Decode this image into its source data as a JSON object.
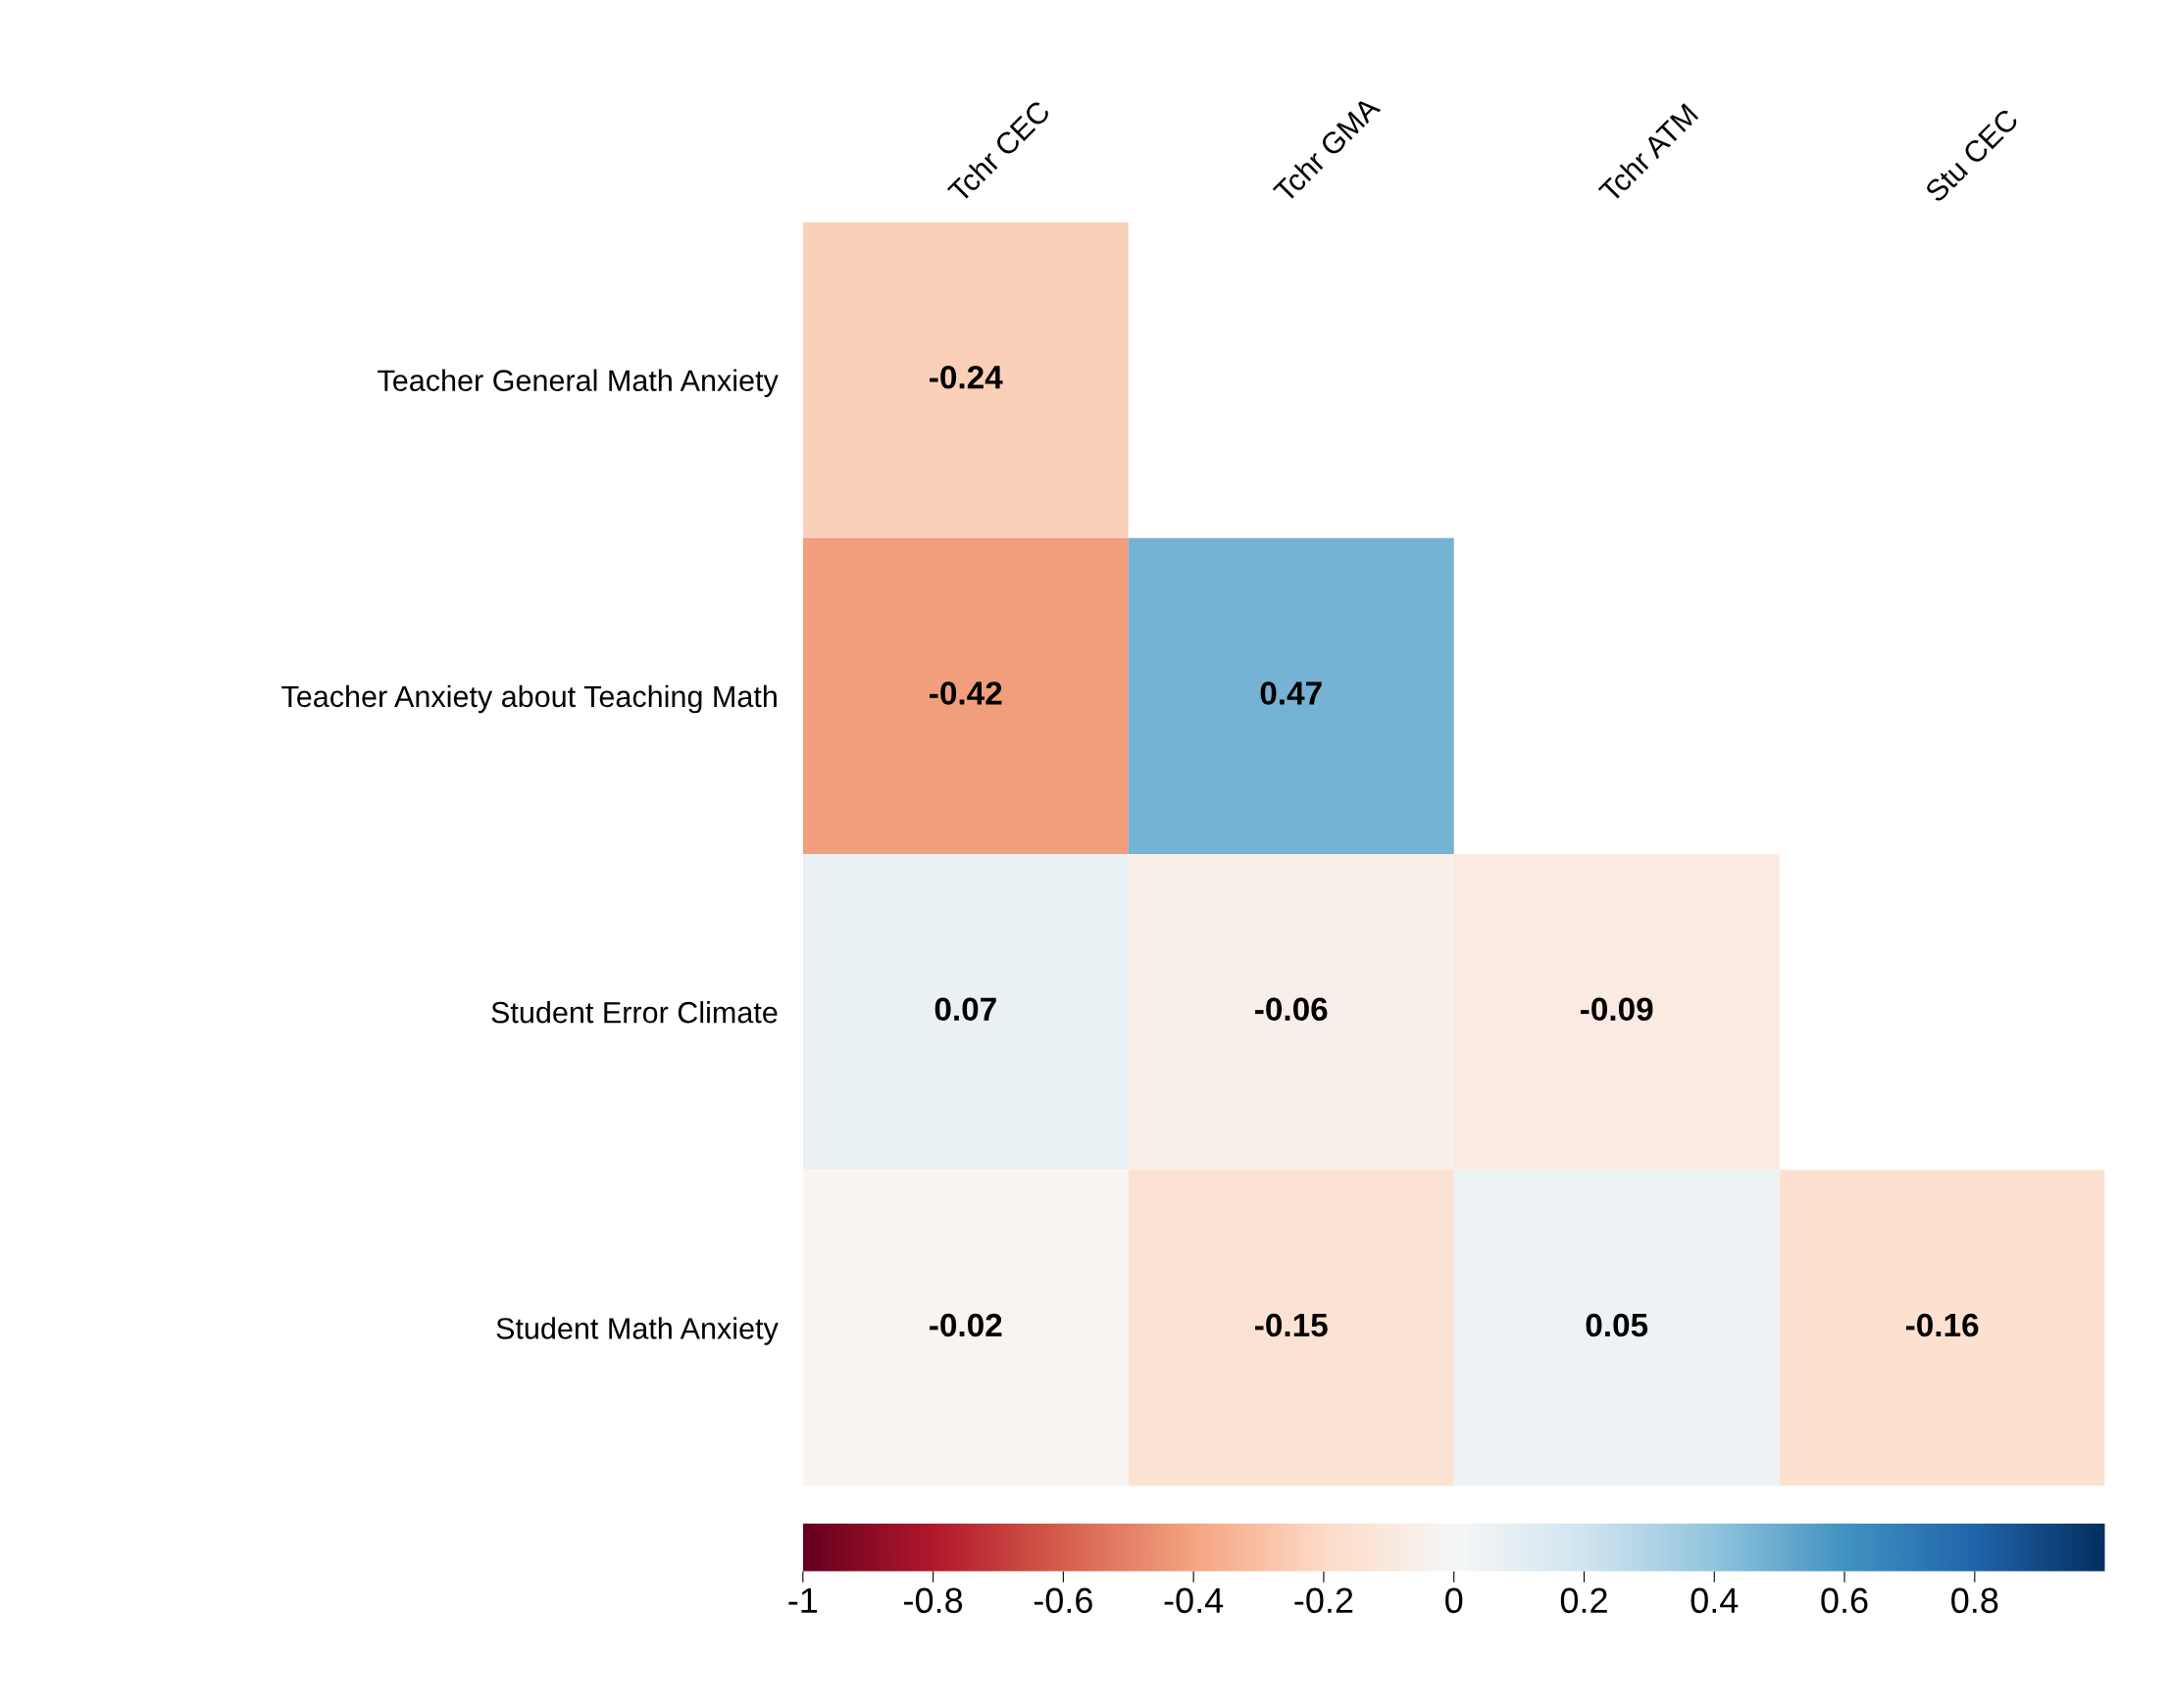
{
  "chart_data": {
    "type": "heatmap",
    "categories": [
      "Tchr CEC",
      "Tchr GMA",
      "Tchr ATM",
      "Stu CEC"
    ],
    "y_categories": [
      "Teacher General Math Anxiety",
      "Teacher Anxiety about Teaching Math",
      "Student Error Climate",
      "Student Math Anxiety"
    ],
    "cells": [
      [
        -0.24,
        null,
        null,
        null
      ],
      [
        -0.42,
        0.47,
        null,
        null
      ],
      [
        0.07,
        -0.06,
        -0.09,
        null
      ],
      [
        -0.02,
        -0.15,
        0.05,
        -0.16
      ]
    ],
    "data_labels": true,
    "clim": [
      -1,
      1
    ],
    "cticks": [
      -1,
      -0.8,
      -0.6,
      -0.4,
      -0.2,
      0,
      0.2,
      0.4,
      0.6,
      0.8
    ]
  }
}
